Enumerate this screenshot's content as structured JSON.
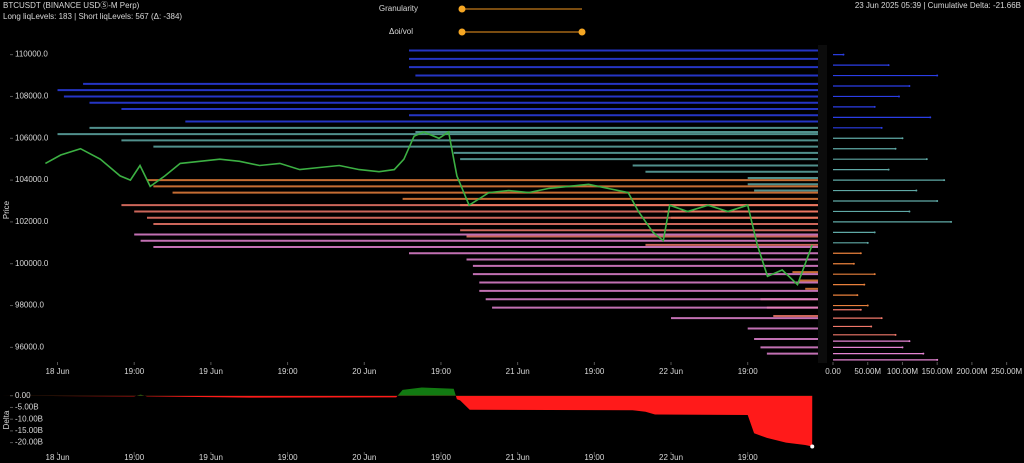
{
  "header": {
    "symbol": "BTCUSDT (BINANCE USDⓈ-M Perp)",
    "liq_counts": "Long liqLevels: 183 | Short liqLevels: 567 (Δ: -384)",
    "status": "23 Jun 2025 05:39 | Cumulative Delta: -21.66B"
  },
  "controls": {
    "granularity": "Granularity",
    "oi_vol": "Δoi/vol"
  },
  "chart_data": [
    {
      "type": "line",
      "y_label": "Price",
      "color": "#3cb043",
      "x": [
        -1.9,
        0.5,
        3.6,
        6.7,
        9.8,
        11.4,
        12.9,
        14.5,
        16.8,
        19.2,
        22.3,
        25.4,
        28.5,
        31.6,
        34.8,
        37.9,
        41.0,
        44.1,
        47.2,
        50.3,
        52.7,
        54.2,
        55.8,
        57.3,
        59.7,
        61.2,
        62.5,
        64.4,
        67.5,
        70.6,
        73.7,
        76.8,
        79.9,
        83.1,
        86.2,
        89.3,
        90.9,
        93.2,
        94.8,
        95.8,
        98.6,
        101.8,
        104.9,
        108.0,
        109.5,
        111.1,
        113.4,
        115.8,
        118.1
      ],
      "values": [
        104800,
        105200,
        105500,
        105000,
        104200,
        104000,
        104700,
        103700,
        104200,
        104800,
        104900,
        105000,
        104900,
        104700,
        104800,
        104500,
        104600,
        104700,
        104500,
        104400,
        104500,
        105000,
        106100,
        106300,
        106000,
        106300,
        104200,
        102800,
        103400,
        103500,
        103400,
        103600,
        103700,
        103800,
        103600,
        103400,
        102500,
        101500,
        101100,
        102800,
        102500,
        102800,
        102500,
        102800,
        100900,
        99400,
        99700,
        99000,
        100900
      ],
      "xlim": [
        -9,
        119
      ],
      "xticks": [
        {
          "value": 0,
          "label": "18 Jun"
        },
        {
          "value": 12,
          "label": "19:00"
        },
        {
          "value": 24,
          "label": "19 Jun"
        },
        {
          "value": 36,
          "label": "19:00"
        },
        {
          "value": 48,
          "label": "20 Jun"
        },
        {
          "value": 60,
          "label": "19:00"
        },
        {
          "value": 72,
          "label": "21 Jun"
        },
        {
          "value": 84,
          "label": "19:00"
        },
        {
          "value": 96,
          "label": "22 Jun"
        },
        {
          "value": 108,
          "label": "19:00"
        }
      ],
      "ylim": [
        95300,
        110700
      ],
      "yticks": [
        {
          "value": 96000,
          "label": "96000.0"
        },
        {
          "value": 98000,
          "label": "98000.0"
        },
        {
          "value": 100000,
          "label": "100000.0"
        },
        {
          "value": 102000,
          "label": "102000.0"
        },
        {
          "value": 104000,
          "label": "104000.0"
        },
        {
          "value": 106000,
          "label": "106000.0"
        },
        {
          "value": 108000,
          "label": "108000.0"
        },
        {
          "value": 110000,
          "label": "110000.0"
        }
      ],
      "liquidation_levels": [
        {
          "color": "#2b3ee6",
          "values": [
            110200,
            109800,
            109400,
            109000,
            108600,
            108300,
            108000,
            107700,
            107400,
            107100,
            106800
          ],
          "x": [
            55,
            55,
            55,
            56,
            4,
            0,
            1,
            5,
            10,
            55,
            20
          ]
        },
        {
          "color": "#5fa9a6",
          "values": [
            106500,
            106300,
            106200,
            105900,
            105600,
            105300,
            105000,
            104700,
            104400,
            104100,
            103800,
            103500
          ],
          "x": [
            5,
            56,
            0,
            10,
            15,
            62,
            63,
            90,
            92,
            108,
            108,
            109
          ]
        },
        {
          "color": "#e8803c",
          "values": [
            104000,
            103700,
            103400,
            103100,
            102800,
            102500,
            102200,
            99600,
            99200,
            98800
          ],
          "x": [
            14,
            15,
            18,
            54,
            63,
            95,
            96,
            115,
            116,
            117
          ]
        },
        {
          "color": "#f0786a",
          "values": [
            102800,
            102500,
            102200,
            101900,
            101600,
            101300,
            100900,
            98300,
            97900,
            97500
          ],
          "x": [
            10,
            12,
            14,
            15,
            63,
            64,
            92,
            110,
            111,
            112
          ]
        },
        {
          "color": "#e484d2",
          "values": [
            101400,
            101100,
            100800,
            100500,
            100200,
            99900,
            99500,
            99100,
            98700,
            98300,
            97900,
            97400,
            96900,
            96400,
            96000,
            95700
          ],
          "x": [
            12,
            13,
            15,
            55,
            64,
            65,
            65,
            66,
            66,
            67,
            68,
            96,
            108,
            109,
            110,
            111
          ]
        }
      ]
    },
    {
      "type": "hbar",
      "xlim": [
        0,
        275000000
      ],
      "xticks": [
        {
          "value": 0,
          "label": "0.00"
        },
        {
          "value": 50000000,
          "label": "50.00M"
        },
        {
          "value": 100000000,
          "label": "100.00M"
        },
        {
          "value": 150000000,
          "label": "150.00M"
        },
        {
          "value": 200000000,
          "label": "200.00M"
        },
        {
          "value": 250000000,
          "label": "250.00M"
        }
      ],
      "ylim": [
        95300,
        110700
      ],
      "series": [
        {
          "color": "#2b3ee6",
          "y": [
            110000,
            109500,
            109000,
            108500,
            108000,
            107500,
            107000,
            106500
          ],
          "values": [
            15000000,
            80000000,
            150000000,
            110000000,
            95000000,
            60000000,
            140000000,
            70000000
          ]
        },
        {
          "color": "#5fa9a6",
          "y": [
            106000,
            105500,
            105000,
            104500,
            104000,
            103500,
            103000,
            102500,
            102000,
            101500,
            101000
          ],
          "values": [
            100000000,
            90000000,
            135000000,
            80000000,
            160000000,
            120000000,
            150000000,
            110000000,
            170000000,
            60000000,
            50000000
          ]
        },
        {
          "color": "#e8803c",
          "y": [
            100500,
            100000,
            99500,
            99000,
            98500,
            98000
          ],
          "values": [
            40000000,
            30000000,
            60000000,
            45000000,
            35000000,
            50000000
          ]
        },
        {
          "color": "#f0786a",
          "y": [
            97800,
            97400,
            97000,
            96600
          ],
          "values": [
            40000000,
            70000000,
            55000000,
            90000000
          ]
        },
        {
          "color": "#e484d2",
          "y": [
            96300,
            96000,
            95700,
            95400
          ],
          "values": [
            110000000,
            100000000,
            130000000,
            150000000
          ]
        }
      ]
    },
    {
      "type": "area",
      "y_label": "Delta",
      "positive_color": "#127a12",
      "negative_color": "#ff1a1a",
      "x": [
        -9,
        12,
        13,
        14,
        30,
        53,
        54,
        57,
        62,
        62.5,
        63,
        64.5,
        90,
        92,
        93.5,
        108,
        109,
        111,
        114,
        117,
        118.1
      ],
      "values": [
        0,
        -0.3,
        0.5,
        -0.3,
        -0.8,
        -0.7,
        2.5,
        3.5,
        3.0,
        -1.5,
        -2,
        -6,
        -6.2,
        -6.8,
        -8,
        -8.2,
        -16,
        -18,
        -20,
        -21,
        -21.66
      ],
      "xlim": [
        -9,
        119
      ],
      "xticks": [
        {
          "value": 0,
          "label": "18 Jun"
        },
        {
          "value": 12,
          "label": "19:00"
        },
        {
          "value": 24,
          "label": "19 Jun"
        },
        {
          "value": 36,
          "label": "19:00"
        },
        {
          "value": 48,
          "label": "20 Jun"
        },
        {
          "value": 60,
          "label": "19:00"
        },
        {
          "value": 72,
          "label": "21 Jun"
        },
        {
          "value": 84,
          "label": "19:00"
        },
        {
          "value": 96,
          "label": "22 Jun"
        },
        {
          "value": 108,
          "label": "19:00"
        }
      ],
      "ylim": [
        -24,
        5
      ],
      "yticks": [
        {
          "value": 0,
          "label": "0.00"
        },
        {
          "value": -5,
          "label": "-5.00B"
        },
        {
          "value": -10,
          "label": "-10.00B"
        },
        {
          "value": -15,
          "label": "-15.00B"
        },
        {
          "value": -20,
          "label": "-20.00B"
        }
      ]
    }
  ]
}
